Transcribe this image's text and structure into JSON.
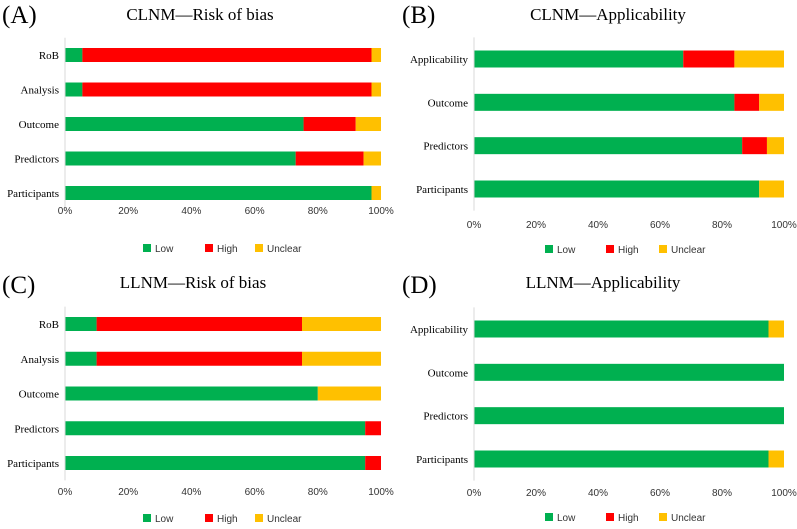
{
  "colors": {
    "Low": "#00b050",
    "High": "#ff0000",
    "Unclear": "#ffc000"
  },
  "chart_data": [
    {
      "type": "bar",
      "orientation": "horizontal",
      "stacked": "percent",
      "panel_label": "(A)",
      "title": "CLNM—Risk of bias",
      "categories": [
        "RoB",
        "Analysis",
        "Outcome",
        "Predictors",
        "Participants"
      ],
      "series": [
        {
          "name": "Low",
          "values": [
            5.5,
            5.5,
            75.5,
            73,
            97
          ]
        },
        {
          "name": "High",
          "values": [
            91.5,
            91.5,
            16.5,
            21.5,
            0
          ]
        },
        {
          "name": "Unclear",
          "values": [
            3,
            3,
            8,
            5.5,
            3
          ]
        }
      ],
      "xticks": [
        "0%",
        "20%",
        "40%",
        "60%",
        "80%",
        "100%"
      ],
      "xlim": [
        0,
        100
      ],
      "legend": [
        "Low",
        "High",
        "Unclear"
      ],
      "legend_position": "bottom"
    },
    {
      "type": "bar",
      "orientation": "horizontal",
      "stacked": "percent",
      "panel_label": "(B)",
      "title": "CLNM—Applicability",
      "categories": [
        "Applicability",
        "Outcome",
        "Predictors",
        "Participants"
      ],
      "series": [
        {
          "name": "Low",
          "values": [
            67.5,
            84,
            86.5,
            92
          ]
        },
        {
          "name": "High",
          "values": [
            16.5,
            8,
            8,
            0
          ]
        },
        {
          "name": "Unclear",
          "values": [
            16,
            8,
            5.5,
            8
          ]
        }
      ],
      "xticks": [
        "0%",
        "20%",
        "40%",
        "60%",
        "80%",
        "100%"
      ],
      "xlim": [
        0,
        100
      ],
      "legend": [
        "Low",
        "High",
        "Unclear"
      ],
      "legend_position": "bottom"
    },
    {
      "type": "bar",
      "orientation": "horizontal",
      "stacked": "percent",
      "panel_label": "(C)",
      "title": "LLNM—Risk of bias",
      "categories": [
        "RoB",
        "Analysis",
        "Outcome",
        "Predictors",
        "Participants"
      ],
      "series": [
        {
          "name": "Low",
          "values": [
            10,
            10,
            80,
            95,
            95
          ]
        },
        {
          "name": "High",
          "values": [
            65,
            65,
            0,
            5,
            5
          ]
        },
        {
          "name": "Unclear",
          "values": [
            25,
            25,
            20,
            0,
            0
          ]
        }
      ],
      "xticks": [
        "0%",
        "20%",
        "40%",
        "60%",
        "80%",
        "100%"
      ],
      "xlim": [
        0,
        100
      ],
      "legend": [
        "Low",
        "High",
        "Unclear"
      ],
      "legend_position": "bottom"
    },
    {
      "type": "bar",
      "orientation": "horizontal",
      "stacked": "percent",
      "panel_label": "(D)",
      "title": "LLNM—Applicability",
      "categories": [
        "Applicability",
        "Outcome",
        "Predictors",
        "Participants"
      ],
      "series": [
        {
          "name": "Low",
          "values": [
            95,
            100,
            100,
            95
          ]
        },
        {
          "name": "High",
          "values": [
            0,
            0,
            0,
            0
          ]
        },
        {
          "name": "Unclear",
          "values": [
            5,
            0,
            0,
            5
          ]
        }
      ],
      "xticks": [
        "0%",
        "20%",
        "40%",
        "60%",
        "80%",
        "100%"
      ],
      "xlim": [
        0,
        100
      ],
      "legend": [
        "Low",
        "High",
        "Unclear"
      ],
      "legend_position": "bottom"
    }
  ]
}
